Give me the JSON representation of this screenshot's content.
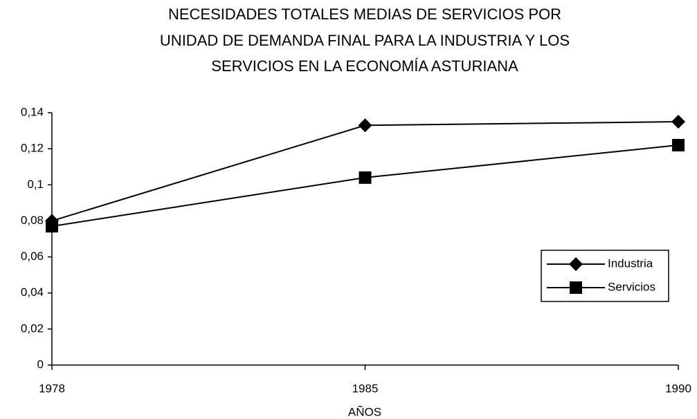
{
  "chart_data": {
    "type": "line",
    "title": [
      "NECESIDADES TOTALES MEDIAS DE SERVICIOS POR",
      "UNIDAD DE DEMANDA FINAL PARA LA INDUSTRIA Y LOS",
      "SERVICIOS EN LA ECONOMÍA ASTURIANA"
    ],
    "x_label": "AÑOS",
    "categories": [
      "1978",
      "1985",
      "1990"
    ],
    "series": [
      {
        "name": "Industria",
        "color": "#000000",
        "marker": "diamond",
        "values": [
          0.08,
          0.133,
          0.135
        ]
      },
      {
        "name": "Servicios",
        "color": "#000000",
        "marker": "square",
        "values": [
          0.077,
          0.104,
          0.122
        ]
      }
    ],
    "ylim": [
      0,
      0.14
    ],
    "yticks": [
      0,
      {
        "value": 0.02,
        "label": "0,02"
      },
      {
        "value": 0.04,
        "label": "0,04"
      },
      {
        "value": 0.06,
        "label": "0,06"
      },
      {
        "value": 0.08,
        "label": "0,08"
      },
      {
        "value": 0.1,
        "label": "0,1"
      },
      {
        "value": 0.12,
        "label": "0,12"
      },
      {
        "value": 0.14,
        "label": "0,14"
      }
    ],
    "grid": false,
    "legend": "right"
  }
}
